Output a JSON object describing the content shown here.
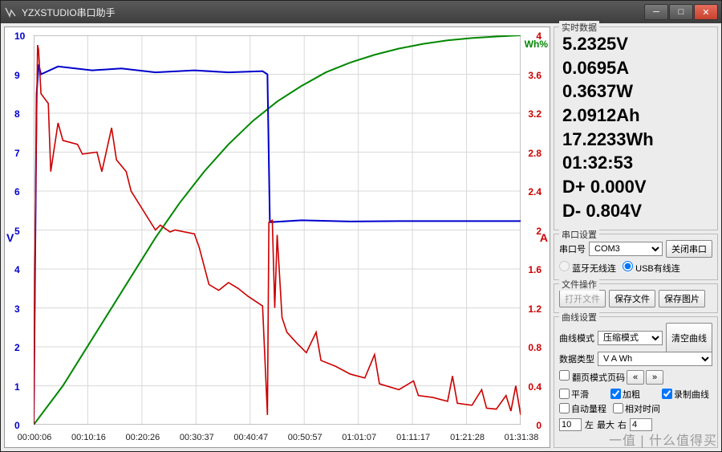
{
  "window": {
    "title": "YZXSTUDIO串口助手"
  },
  "realtime": {
    "title": "实时数据",
    "voltage": "5.2325V",
    "current": "0.0695A",
    "power": "0.3637W",
    "ah": "2.0912Ah",
    "wh": "17.2233Wh",
    "time": "01:32:53",
    "dplus": "D+  0.000V",
    "dminus": "D-  0.804V"
  },
  "serial": {
    "title": "串口设置",
    "port_label": "串口号",
    "port_value": "COM3",
    "close_btn": "关闭串口",
    "radio_bt": "蓝牙无线连",
    "radio_usb": "USB有线连"
  },
  "file": {
    "title": "文件操作",
    "open": "打开文件",
    "save": "保存文件",
    "save_img": "保存图片"
  },
  "curve": {
    "title": "曲线设置",
    "mode_label": "曲线模式",
    "mode_value": "压缩模式",
    "data_label": "数据类型",
    "data_value": "V A Wh",
    "clear": "清空曲线",
    "pager_label": "翻页模式页码",
    "chk_smooth": "平滑",
    "chk_bold": "加粗",
    "chk_record": "录制曲线",
    "chk_autorange": "自动量程",
    "chk_reltime": "相对时间",
    "spin_left_val": "10",
    "spin_left_lbl": "左",
    "spin_max_lbl": "最大",
    "spin_right_lbl": "右",
    "spin_right_val": "4"
  },
  "watermark": "一值 | 什么值得买",
  "chart": {
    "bg": "#ffffff",
    "grid_color": "#d9d9d9",
    "left_axis": {
      "label": "V",
      "color": "#0000cc",
      "min": 0,
      "max": 10,
      "ticks": [
        0,
        1,
        2,
        3,
        4,
        5,
        6,
        7,
        8,
        9,
        10
      ]
    },
    "right_axis": {
      "label": "A",
      "color": "#cc0000",
      "min": 0,
      "max": 4,
      "ticks": [
        0,
        0.4,
        0.8,
        1.2,
        1.6,
        2,
        2.4,
        2.8,
        3.2,
        3.6,
        4
      ]
    },
    "wh_axis": {
      "label": "Wh%",
      "color": "#008800"
    },
    "x_ticks": [
      "00:00:06",
      "00:10:16",
      "00:20:26",
      "00:30:37",
      "00:40:47",
      "00:50:57",
      "01:01:07",
      "01:11:17",
      "01:21:28",
      "01:31:38"
    ],
    "series": {
      "voltage": {
        "color": "#0000cc",
        "width": 2,
        "points": [
          [
            0,
            0
          ],
          [
            0.3,
            4.2
          ],
          [
            0.6,
            8.5
          ],
          [
            1,
            9.25
          ],
          [
            1.5,
            9.0
          ],
          [
            5,
            9.2
          ],
          [
            12,
            9.1
          ],
          [
            18,
            9.15
          ],
          [
            25,
            9.05
          ],
          [
            33,
            9.1
          ],
          [
            40,
            9.05
          ],
          [
            47,
            9.08
          ],
          [
            48,
            9.0
          ],
          [
            48.5,
            5.2
          ],
          [
            55,
            5.25
          ],
          [
            65,
            5.22
          ],
          [
            75,
            5.23
          ],
          [
            85,
            5.23
          ],
          [
            95,
            5.23
          ],
          [
            100,
            5.23
          ]
        ]
      },
      "current": {
        "color": "#cc0000",
        "width": 1.6,
        "points": [
          [
            0,
            0
          ],
          [
            0.4,
            2.4
          ],
          [
            0.8,
            3.9
          ],
          [
            1,
            3.85
          ],
          [
            1.5,
            3.4
          ],
          [
            3,
            3.3
          ],
          [
            3.5,
            2.6
          ],
          [
            5,
            3.1
          ],
          [
            6,
            2.92
          ],
          [
            9,
            2.88
          ],
          [
            10,
            2.78
          ],
          [
            13,
            2.8
          ],
          [
            14,
            2.6
          ],
          [
            16,
            3.05
          ],
          [
            17,
            2.72
          ],
          [
            19,
            2.6
          ],
          [
            20,
            2.4
          ],
          [
            25,
            2.0
          ],
          [
            26,
            2.05
          ],
          [
            28,
            1.98
          ],
          [
            29,
            2.0
          ],
          [
            33,
            1.96
          ],
          [
            34,
            1.82
          ],
          [
            36,
            1.44
          ],
          [
            38,
            1.38
          ],
          [
            40,
            1.46
          ],
          [
            42,
            1.4
          ],
          [
            44,
            1.32
          ],
          [
            47,
            1.22
          ],
          [
            48,
            0.1
          ],
          [
            48.3,
            2.08
          ],
          [
            49,
            2.1
          ],
          [
            49.5,
            1.2
          ],
          [
            50,
            1.95
          ],
          [
            51,
            1.1
          ],
          [
            52,
            0.95
          ],
          [
            54,
            0.84
          ],
          [
            56,
            0.74
          ],
          [
            58,
            0.95
          ],
          [
            59,
            0.66
          ],
          [
            62,
            0.6
          ],
          [
            65,
            0.52
          ],
          [
            68,
            0.48
          ],
          [
            70,
            0.72
          ],
          [
            71,
            0.42
          ],
          [
            75,
            0.36
          ],
          [
            78,
            0.45
          ],
          [
            79,
            0.3
          ],
          [
            82,
            0.28
          ],
          [
            85,
            0.24
          ],
          [
            86,
            0.5
          ],
          [
            87,
            0.22
          ],
          [
            90,
            0.2
          ],
          [
            92,
            0.36
          ],
          [
            93,
            0.17
          ],
          [
            95,
            0.16
          ],
          [
            97,
            0.3
          ],
          [
            98,
            0.14
          ],
          [
            99,
            0.4
          ],
          [
            100,
            0.1
          ]
        ]
      },
      "wh": {
        "color": "#008800",
        "width": 2,
        "points": [
          [
            0,
            0
          ],
          [
            3,
            5
          ],
          [
            6,
            10
          ],
          [
            10,
            18
          ],
          [
            15,
            28
          ],
          [
            20,
            38
          ],
          [
            25,
            48
          ],
          [
            30,
            57
          ],
          [
            35,
            65
          ],
          [
            40,
            72
          ],
          [
            45,
            78
          ],
          [
            50,
            83
          ],
          [
            55,
            87
          ],
          [
            60,
            90.5
          ],
          [
            65,
            93
          ],
          [
            70,
            95
          ],
          [
            75,
            96.6
          ],
          [
            80,
            97.8
          ],
          [
            85,
            98.7
          ],
          [
            90,
            99.3
          ],
          [
            95,
            99.7
          ],
          [
            100,
            100
          ]
        ]
      }
    }
  }
}
